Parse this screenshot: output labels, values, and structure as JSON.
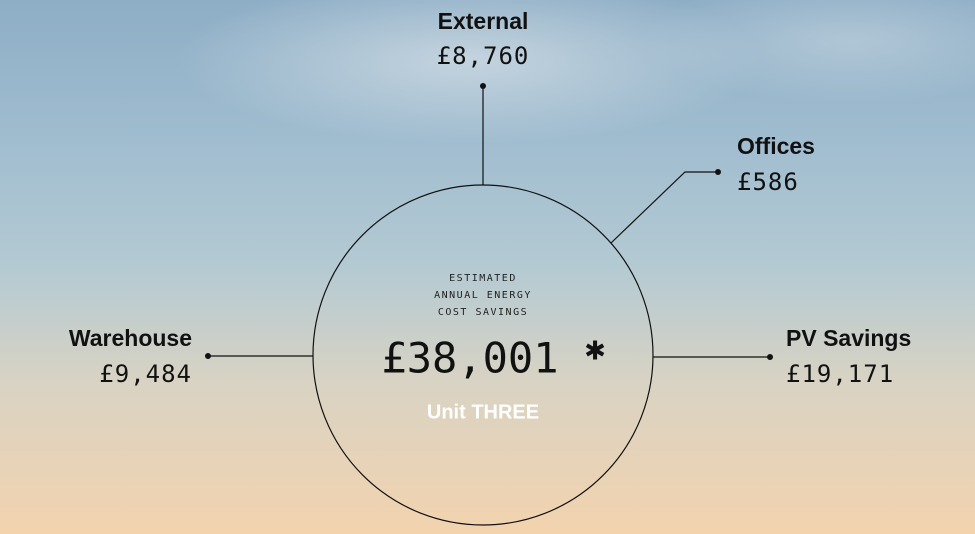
{
  "center": {
    "caption": [
      "ESTIMATED",
      "ANNUAL ENERGY",
      "COST SAVINGS"
    ],
    "total": "£38,001",
    "footnote_mark": "✱",
    "unit": "Unit THREE"
  },
  "nodes": [
    {
      "label": "External",
      "value": "£8,760"
    },
    {
      "label": "Offices",
      "value": "£586"
    },
    {
      "label": "Warehouse",
      "value": "£9,484"
    },
    {
      "label": "PV Savings",
      "value": "£19,171"
    }
  ]
}
